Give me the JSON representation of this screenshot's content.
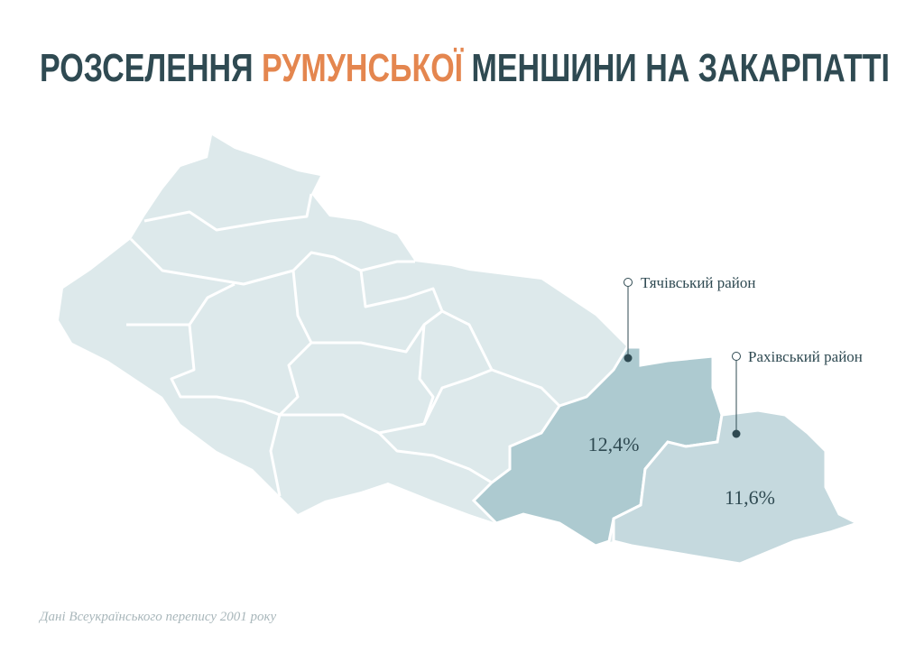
{
  "header": {
    "title_start": "РОЗСЕЛЕННЯ",
    "title_accent": "РУМУНСЬКОЇ",
    "title_end": "МЕНШИНИ НА ЗАКАРПАТТІ"
  },
  "regions": [
    {
      "name": "Тячівський район",
      "value": 12.4,
      "value_label": "12,4%",
      "color": "#adcad0"
    },
    {
      "name": "Рахівський район",
      "value": 11.6,
      "value_label": "11,6%",
      "color": "#c5d9de"
    }
  ],
  "footer": {
    "source": "Дані Всеукраїнського перепису 2001 року"
  }
}
